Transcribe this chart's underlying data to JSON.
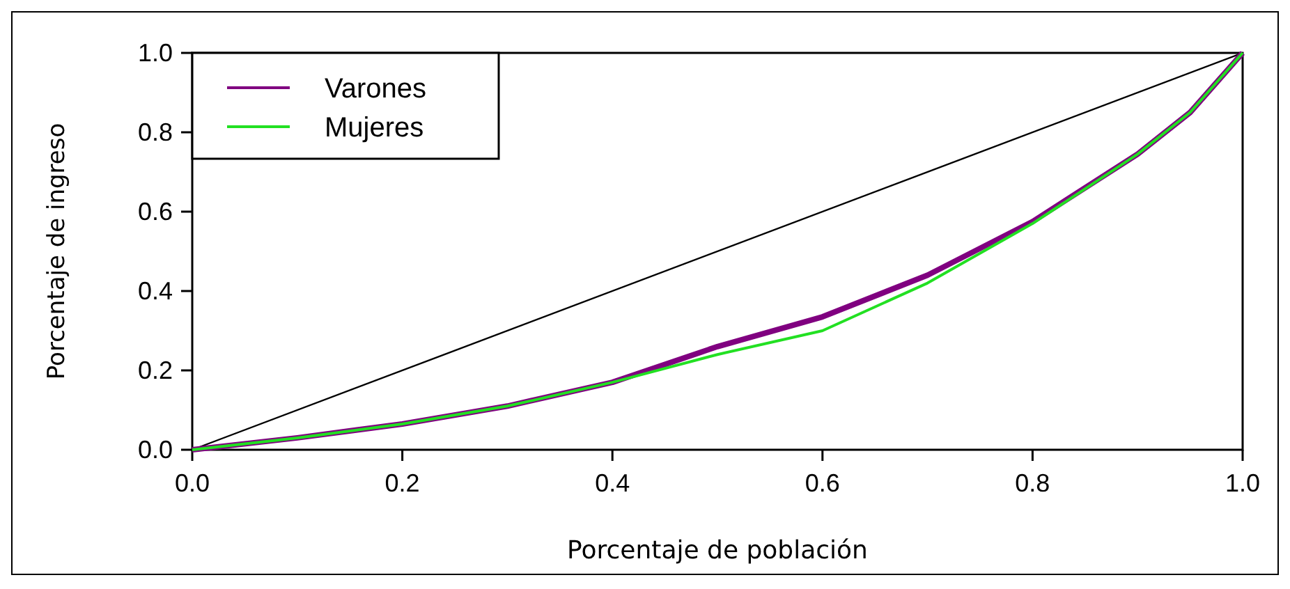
{
  "chart_data": {
    "type": "line",
    "xlabel": "Porcentaje de población",
    "ylabel": "Porcentaje de ingreso",
    "xlim": [
      0,
      1
    ],
    "ylim": [
      0,
      1
    ],
    "xticks": [
      {
        "value": 0,
        "label": "0.0"
      },
      0.2,
      0.4,
      0.6,
      0.8,
      {
        "value": 1,
        "label": "1.0"
      }
    ],
    "yticks": [
      {
        "value": 0,
        "label": "0.0"
      },
      0.2,
      0.4,
      0.6,
      0.8,
      {
        "value": 1,
        "label": "1.0"
      }
    ],
    "grid": false,
    "legend": "top left",
    "line_style": "solid",
    "series": [
      {
        "color": "#000000",
        "x": [
          0,
          1
        ],
        "values": [
          0,
          1
        ]
      },
      {
        "name": "Varones",
        "color": "#800080",
        "x": [
          0,
          0.1,
          0.2,
          0.3,
          0.4,
          0.5,
          0.6,
          0.7,
          0.8,
          0.9,
          0.95,
          1
        ],
        "values": [
          0,
          0.03,
          0.065,
          0.11,
          0.17,
          0.26,
          0.335,
          0.44,
          0.575,
          0.745,
          0.85,
          1
        ]
      },
      {
        "name": "Mujeres",
        "color": "#22e022",
        "x": [
          0,
          0.1,
          0.2,
          0.3,
          0.4,
          0.5,
          0.6,
          0.7,
          0.8,
          0.9,
          0.95,
          1
        ],
        "values": [
          0,
          0.03,
          0.065,
          0.11,
          0.17,
          0.24,
          0.3,
          0.42,
          0.57,
          0.745,
          0.85,
          1
        ]
      }
    ]
  }
}
